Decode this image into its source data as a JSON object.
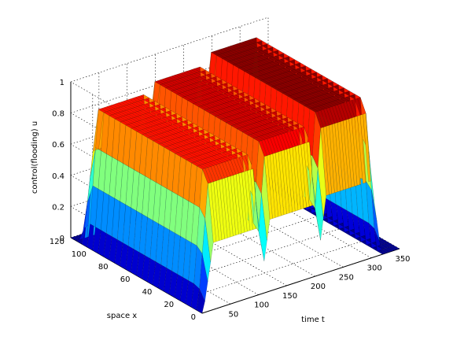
{
  "chart_data": {
    "type": "surface3d",
    "title": "",
    "xlabel": "time t",
    "ylabel": "space x",
    "zlabel": "control(flooding) u",
    "xlim": [
      0,
      350
    ],
    "ylim": [
      0,
      120
    ],
    "zlim": [
      0,
      1
    ],
    "x_ticks": [
      "50",
      "100",
      "150",
      "200",
      "250",
      "300",
      "350"
    ],
    "y_ticks": [
      "0",
      "20",
      "40",
      "60",
      "80",
      "100",
      "120"
    ],
    "z_ticks": [
      "0",
      "0.2",
      "0.4",
      "0.6",
      "0.8",
      "1"
    ],
    "grid": true,
    "colormap": "jet",
    "colormap_stops": [
      "#00008f",
      "#0000ff",
      "#00ffff",
      "#ffff00",
      "#ff0000",
      "#800000"
    ],
    "pulses": [
      {
        "t_start": 20,
        "t_end": 100,
        "x_start": 0,
        "x_end": 112,
        "peak": 0.86
      },
      {
        "t_start": 120,
        "t_end": 200,
        "x_start": 0,
        "x_end": 112,
        "peak": 0.92
      },
      {
        "t_start": 220,
        "t_end": 300,
        "x_start": 0,
        "x_end": 112,
        "peak": 0.99
      }
    ]
  }
}
